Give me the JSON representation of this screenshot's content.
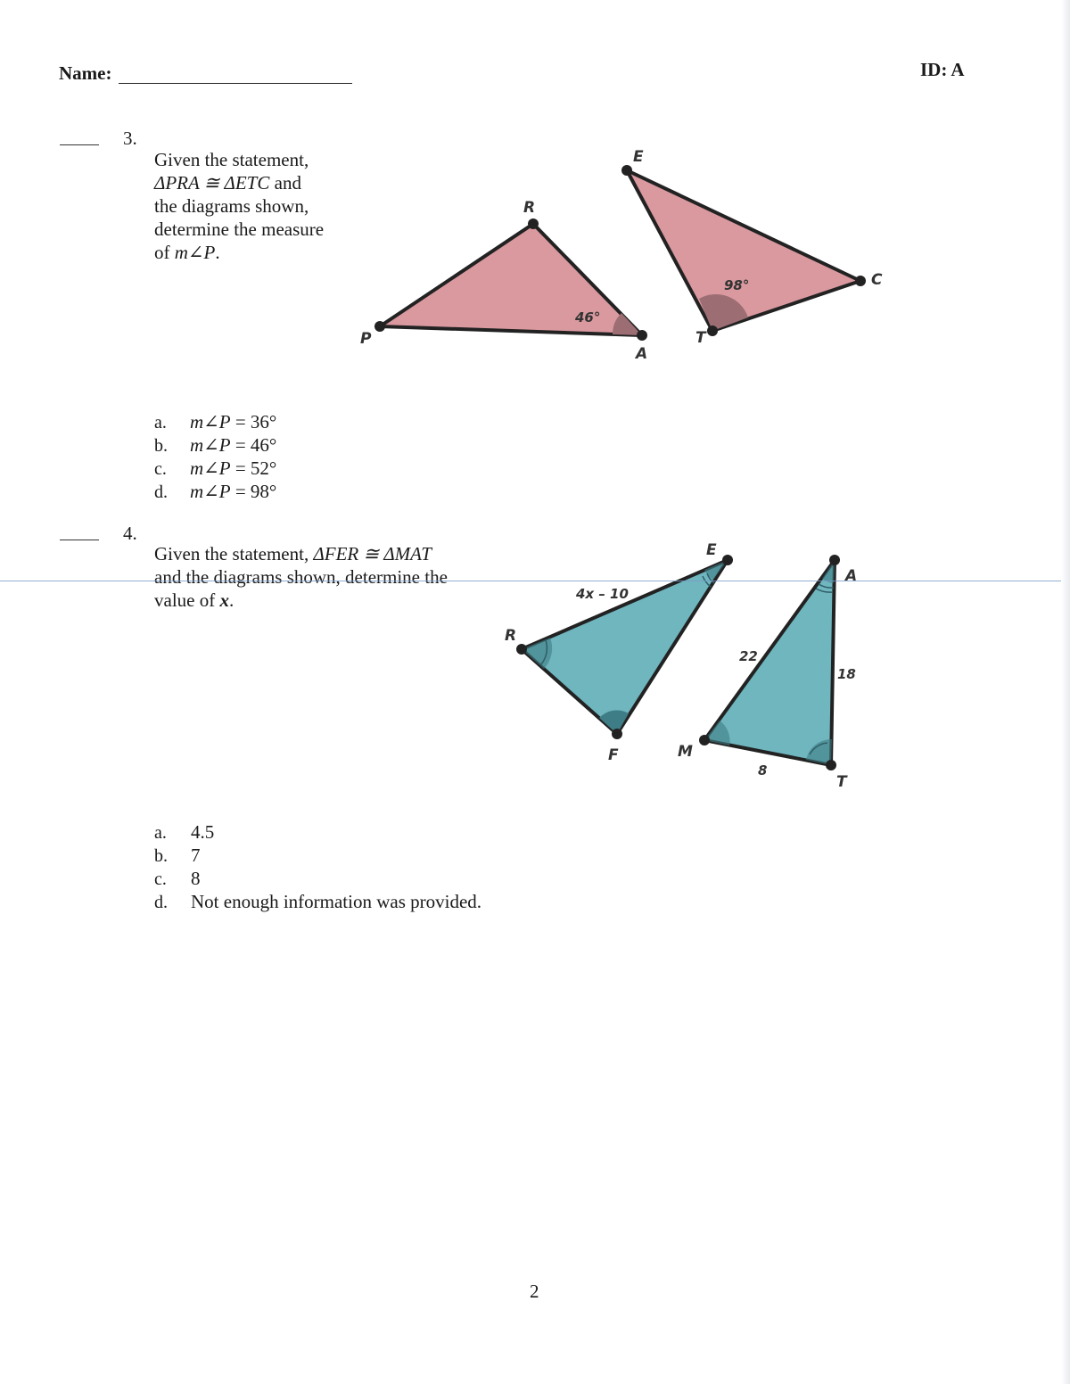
{
  "header": {
    "name_label": "Name:",
    "id_label": "ID: A"
  },
  "q3": {
    "number": "3.",
    "text_line1": "Given the statement,",
    "congruence": "ΔPRA ≅ ΔETC",
    "congruence_tail": "and",
    "text_line3": "the diagrams shown,",
    "text_line4": "determine the  measure",
    "text_line5_prefix": "of ",
    "text_line5_expr": "m∠P",
    "text_line5_suffix": ".",
    "figure": {
      "tri1_labels": {
        "P": "P",
        "R": "R",
        "A": "A"
      },
      "tri1_angle": "46°",
      "tri2_labels": {
        "E": "E",
        "T": "T",
        "C": "C"
      },
      "tri2_angle": "98°",
      "fill_color": "#d9999f",
      "angle_fill": "#9c6e74"
    },
    "choices": [
      {
        "letter": "a.",
        "expr": "m∠P",
        "value": " = 36°"
      },
      {
        "letter": "b.",
        "expr": "m∠P",
        "value": " = 46°"
      },
      {
        "letter": "c.",
        "expr": "m∠P",
        "value": " = 52°"
      },
      {
        "letter": "d.",
        "expr": "m∠P",
        "value": " = 98°"
      }
    ]
  },
  "q4": {
    "number": "4.",
    "text_line1_prefix": "Given the statement, ",
    "congruence": "ΔFER ≅ ΔMAT",
    "text_line2": "and the diagrams shown, determine the",
    "text_line3_prefix": "value of ",
    "text_line3_var": "x",
    "text_line3_suffix": ".",
    "figure": {
      "tri1_labels": {
        "E": "E",
        "R": "R",
        "F": "F"
      },
      "tri1_side": "4x – 10",
      "tri2_labels": {
        "A": "A",
        "M": "M",
        "T": "T"
      },
      "side_MA": "22",
      "side_AT": "18",
      "side_MT": "8",
      "fill_color": "#6fb6bf",
      "angle_fill": "#3f7d86"
    },
    "choices": [
      {
        "letter": "a.",
        "value": "4.5"
      },
      {
        "letter": "b.",
        "value": "7"
      },
      {
        "letter": "c.",
        "value": "8"
      },
      {
        "letter": "d.",
        "value": "Not enough information was provided."
      }
    ]
  },
  "footer": {
    "page_number": "2"
  }
}
